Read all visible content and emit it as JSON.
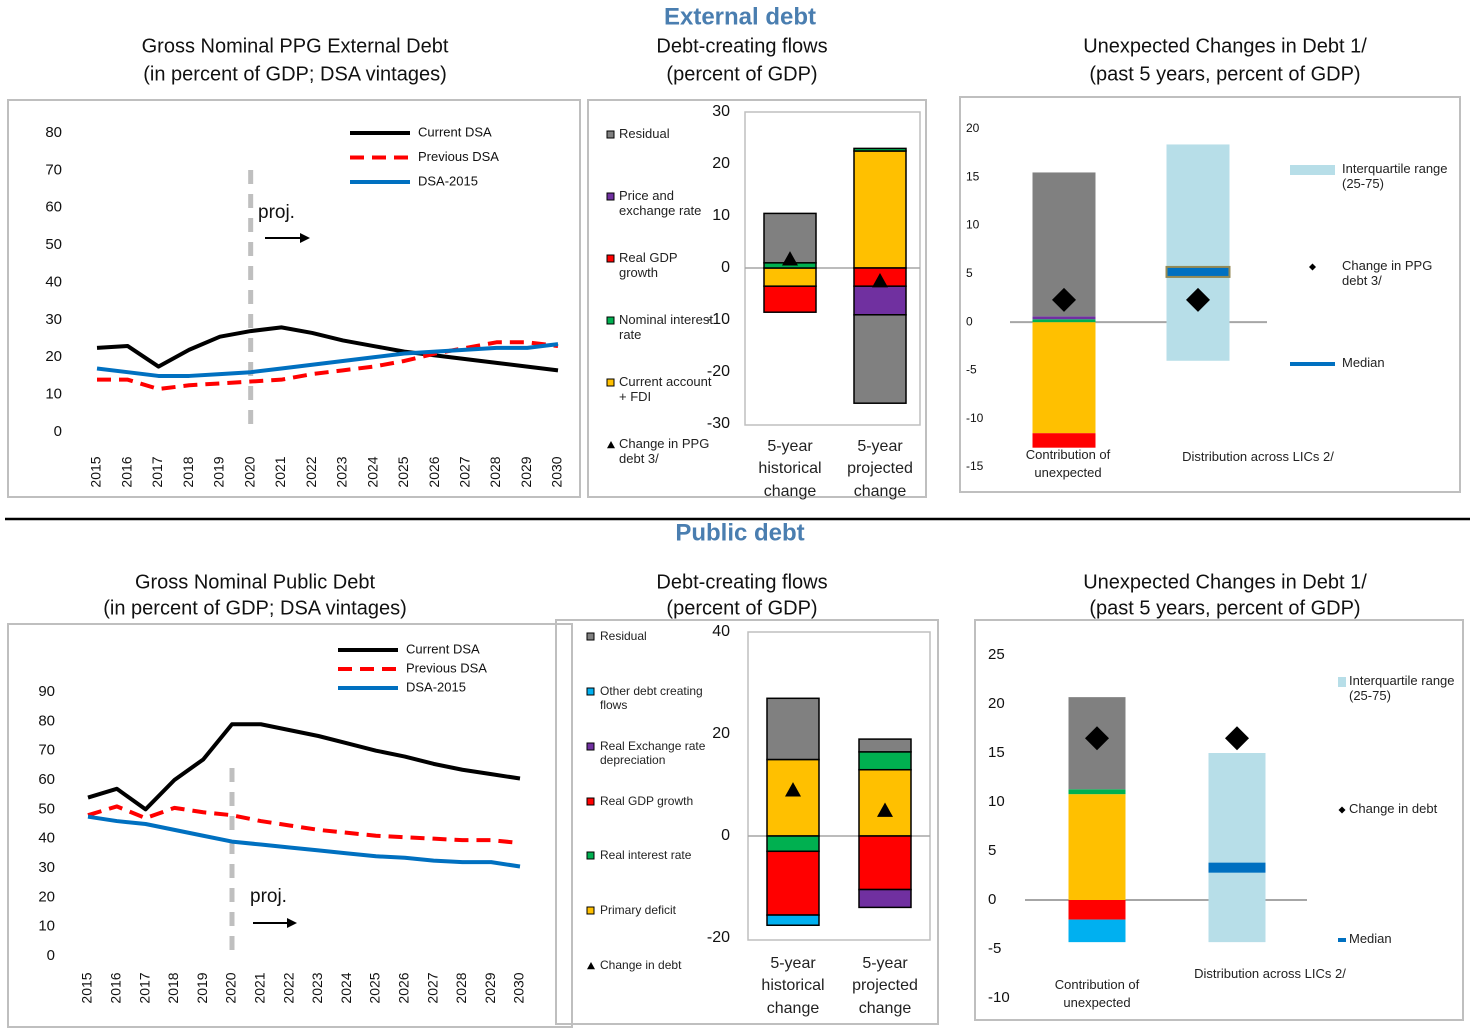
{
  "sections": [
    "External debt",
    "Public debt"
  ],
  "chart_data": [
    {
      "type": "line",
      "title": "Gross Nominal PPG External Debt",
      "subtitle": "(in percent of GDP; DSA vintages)",
      "x": [
        2015,
        2016,
        2017,
        2018,
        2019,
        2020,
        2021,
        2022,
        2023,
        2024,
        2025,
        2026,
        2027,
        2028,
        2029,
        2030
      ],
      "xlim": [
        2015,
        2030
      ],
      "ylim": [
        0,
        80
      ],
      "yticks": [
        0,
        10,
        20,
        30,
        40,
        50,
        60,
        70,
        80
      ],
      "annotation": {
        "text": "proj.",
        "x": 2020
      },
      "series": [
        {
          "name": "Current DSA",
          "color": "#000000",
          "style": "solid",
          "values": [
            22.5,
            23,
            17.5,
            22,
            25.5,
            27,
            28,
            26.5,
            24.5,
            23,
            21.5,
            20.5,
            19.5,
            18.5,
            17.5,
            16.5
          ]
        },
        {
          "name": "Previous DSA",
          "color": "#ff0000",
          "style": "dashed",
          "values": [
            14,
            14,
            11.5,
            12.5,
            13,
            13.5,
            14,
            15.5,
            16.5,
            17.5,
            19,
            21,
            22.5,
            24,
            24,
            23
          ]
        },
        {
          "name": "DSA-2015",
          "color": "#0070c0",
          "style": "solid",
          "values": [
            17,
            16,
            15,
            15,
            15.5,
            16,
            17,
            18,
            19,
            20,
            21,
            21.5,
            22,
            22.5,
            22.5,
            23.5
          ]
        }
      ]
    },
    {
      "type": "stacked",
      "title": "Debt-creating flows",
      "subtitle": "(percent of GDP)",
      "categories": [
        "5-year historical change",
        "5-year projected change"
      ],
      "ylim": [
        -30,
        30
      ],
      "yticks": [
        30,
        20,
        10,
        0,
        -10,
        -20,
        -30
      ],
      "series": [
        {
          "name": "Current account + FDI",
          "color": "#ffc000",
          "values": [
            -3.5,
            22.5
          ]
        },
        {
          "name": "Nominal interest rate",
          "color": "#00b050",
          "values": [
            1,
            0.5
          ]
        },
        {
          "name": "Real GDP growth",
          "color": "#ff0000",
          "values": [
            -5,
            -3.5
          ]
        },
        {
          "name": "Price and exchange rate",
          "color": "#7030a0",
          "values": [
            0,
            -5.5
          ]
        },
        {
          "name": "Residual",
          "color": "#808080",
          "values": [
            9.5,
            -17
          ]
        }
      ],
      "marker": {
        "name": "Change in PPG debt 3/",
        "values": [
          1.7,
          -2.5
        ]
      }
    },
    {
      "type": "unexpected",
      "title": "Unexpected Changes in Debt 1/",
      "subtitle": "(past 5 years, percent of GDP)",
      "categories": [
        "Contribution of unexpected",
        "Distribution across LICs 2/"
      ],
      "ylim": [
        -15,
        20
      ],
      "yticks": [
        20,
        15,
        10,
        5,
        0,
        -5,
        -10,
        -15
      ],
      "series": [
        {
          "color": "#ffc000",
          "values": [
            -11.5,
            null
          ]
        },
        {
          "color": "#ff0000",
          "values": [
            -1.5,
            null
          ]
        },
        {
          "color": "#00b050",
          "values": [
            0.3,
            null
          ]
        },
        {
          "color": "#7030a0",
          "values": [
            0.3,
            null
          ]
        },
        {
          "color": "#808080",
          "values": [
            14.9,
            null
          ]
        }
      ],
      "range": {
        "name": "Interquartile range (25-75)",
        "color": "#b7dee8",
        "low": -4,
        "high": 18.4
      },
      "median": {
        "name": "Median",
        "color": "#0070c0",
        "value": 5.2
      },
      "marker": {
        "name": "Change in PPG debt 3/",
        "values": [
          2.3,
          2.3
        ]
      }
    },
    {
      "type": "line",
      "title": "Gross Nominal Public Debt",
      "subtitle": "(in percent of GDP; DSA vintages)",
      "x": [
        2015,
        2016,
        2017,
        2018,
        2019,
        2020,
        2021,
        2022,
        2023,
        2024,
        2025,
        2026,
        2027,
        2028,
        2029,
        2030
      ],
      "xlim": [
        2015,
        2030
      ],
      "ylim": [
        0,
        90
      ],
      "yticks": [
        0,
        10,
        20,
        30,
        40,
        50,
        60,
        70,
        80,
        90
      ],
      "annotation": {
        "text": "proj.",
        "x": 2020
      },
      "series": [
        {
          "name": "Current DSA",
          "color": "#000000",
          "style": "solid",
          "values": [
            54,
            57,
            50,
            60,
            67,
            79,
            79,
            77,
            75,
            72.5,
            70,
            68,
            65.5,
            63.5,
            62,
            60.5
          ]
        },
        {
          "name": "Previous DSA",
          "color": "#ff0000",
          "style": "dashed",
          "values": [
            48,
            51,
            47,
            50.5,
            49,
            48,
            46,
            44.5,
            43,
            42,
            41,
            40.5,
            40,
            39.5,
            39.5,
            38.5
          ]
        },
        {
          "name": "DSA-2015",
          "color": "#0070c0",
          "style": "solid",
          "values": [
            47.5,
            46,
            45,
            43,
            41,
            39,
            38,
            37,
            36,
            35,
            34,
            33.5,
            32.5,
            32,
            32,
            30.5
          ]
        }
      ]
    },
    {
      "type": "stacked",
      "title": "Debt-creating flows",
      "subtitle": "(percent of GDP)",
      "categories": [
        "5-year historical change",
        "5-year projected change"
      ],
      "ylim": [
        -20,
        40
      ],
      "yticks": [
        40,
        20,
        0,
        -20
      ],
      "series": [
        {
          "name": "Primary deficit",
          "color": "#ffc000",
          "values": [
            15,
            13
          ]
        },
        {
          "name": "Real interest rate",
          "color": "#00b050",
          "values": [
            -3,
            3.5
          ]
        },
        {
          "name": "Real GDP growth",
          "color": "#ff0000",
          "values": [
            -12.5,
            -10.5
          ]
        },
        {
          "name": "Real Exchange rate depreciation",
          "color": "#7030a0",
          "values": [
            0,
            -3.5
          ]
        },
        {
          "name": "Other debt creating flows",
          "color": "#00b0f0",
          "values": [
            -2,
            0
          ]
        },
        {
          "name": "Residual",
          "color": "#808080",
          "values": [
            12,
            2.5
          ]
        }
      ],
      "marker": {
        "name": "Change in debt",
        "values": [
          9,
          5
        ]
      }
    },
    {
      "type": "unexpected",
      "title": "Unexpected Changes in Debt 1/",
      "subtitle": "(past 5 years, percent of GDP)",
      "categories": [
        "Contribution of unexpected",
        "Distribution across LICs 2/"
      ],
      "ylim": [
        -10,
        25
      ],
      "yticks": [
        25,
        20,
        15,
        10,
        5,
        0,
        -5,
        -10
      ],
      "series": [
        {
          "color": "#ffc000",
          "values": [
            10.8,
            null
          ]
        },
        {
          "color": "#00b050",
          "values": [
            0.5,
            null
          ]
        },
        {
          "color": "#ff0000",
          "values": [
            -2,
            null
          ]
        },
        {
          "color": "#00b0f0",
          "values": [
            -2.3,
            null
          ]
        },
        {
          "color": "#808080",
          "values": [
            9.4,
            null
          ]
        }
      ],
      "range": {
        "name": "Interquartile range (25-75)",
        "color": "#b7dee8",
        "low": -4.3,
        "high": 15
      },
      "median": {
        "name": "Median",
        "color": "#0070c0",
        "value": 3.3
      },
      "marker": {
        "name": "Change in debt",
        "values": [
          16.5,
          16.5
        ]
      }
    }
  ]
}
